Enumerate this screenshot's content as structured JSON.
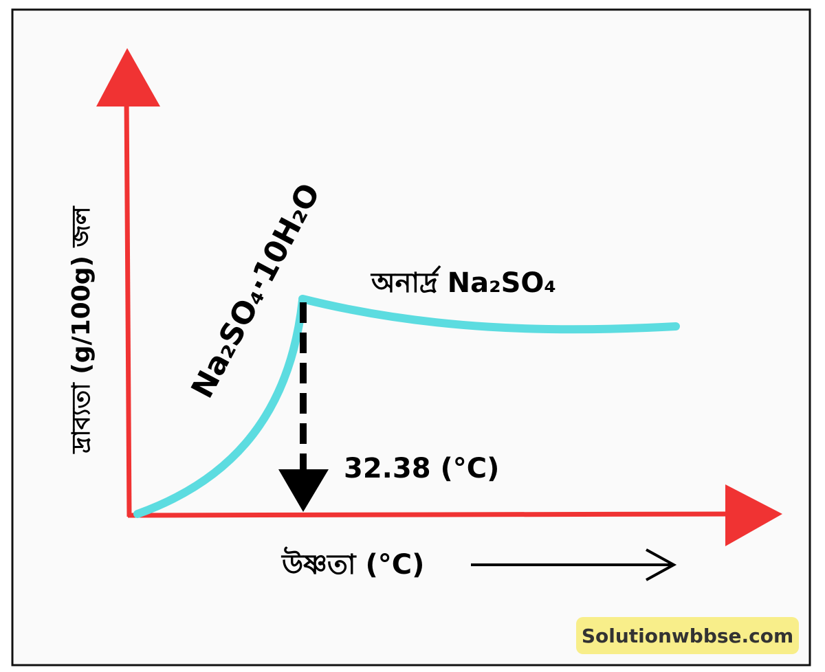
{
  "y_axis_label": "দ্রাব্যতা  (g/100g) জল",
  "x_axis_label": "উষ্ণতা (°C)",
  "transition_label": "32.38 (°C)",
  "hydrate_label": "Na₂SO₄·10H₂O",
  "anhydrous_label": "অনার্দ্র Na₂SO₄",
  "watermark": "Solutionwbbse.com"
}
